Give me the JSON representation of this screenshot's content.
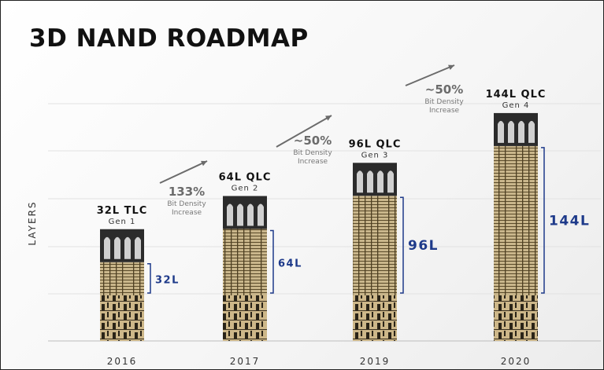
{
  "title": "3D NAND ROADMAP",
  "colors": {
    "layer_label": "#1e3a8a",
    "bracket": "#1e3a8a",
    "arrow": "#6b6b6b",
    "percent": "#6b6b6b",
    "column_gold": "#c8b48a",
    "column_dark": "#1a1a1a"
  },
  "chart_data": {
    "type": "bar",
    "ylabel": "LAYERS",
    "grid": true,
    "categories": [
      "2016",
      "2017",
      "2019",
      "2020"
    ],
    "values": [
      32,
      64,
      96,
      144
    ],
    "bars": [
      {
        "year": "2016",
        "layers": 32,
        "name": "32L TLC",
        "gen": "Gen 1",
        "layer_label": "32L"
      },
      {
        "year": "2017",
        "layers": 64,
        "name": "64L QLC",
        "gen": "Gen 2",
        "layer_label": "64L"
      },
      {
        "year": "2019",
        "layers": 96,
        "name": "96L QLC",
        "gen": "Gen 3",
        "layer_label": "96L"
      },
      {
        "year": "2020",
        "layers": 144,
        "name": "144L QLC",
        "gen": "Gen 4",
        "layer_label": "144L"
      }
    ],
    "annotations": [
      {
        "percent": "133%",
        "line1": "Bit Density",
        "line2": "Increase"
      },
      {
        "percent": "~50%",
        "line1": "Bit Density",
        "line2": "Increase"
      },
      {
        "percent": "~50%",
        "line1": "Bit Density",
        "line2": "Increase"
      }
    ]
  }
}
